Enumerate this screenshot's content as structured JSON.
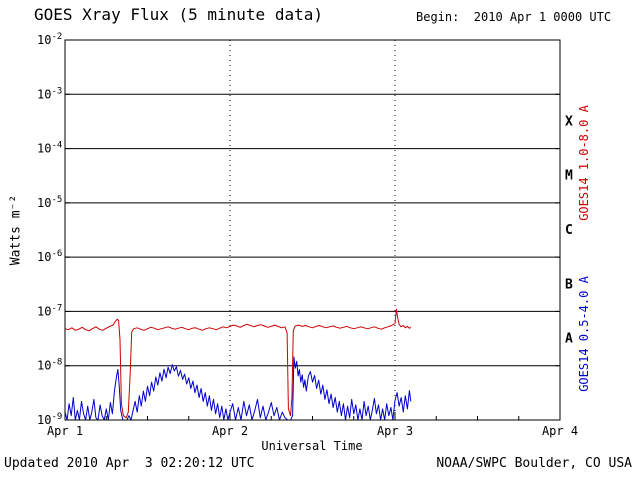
{
  "header": {
    "title": "GOES Xray Flux (5 minute data)",
    "begin": "Begin:  2010 Apr 1 0000 UTC"
  },
  "footer": {
    "updated": "Updated 2010 Apr  3 02:20:12 UTC",
    "source": "NOAA/SWPC Boulder, CO USA"
  },
  "axes": {
    "x_title": "Universal Time",
    "y_title": "Watts m⁻²",
    "x_range_hours": [
      0,
      72
    ],
    "x_minor_step_hours": 6,
    "x_ticks": [
      {
        "label": "Apr 1",
        "hour": 0,
        "dotted": false
      },
      {
        "label": "Apr 2",
        "hour": 24,
        "dotted": true
      },
      {
        "label": "Apr 3",
        "hour": 48,
        "dotted": true
      },
      {
        "label": "Apr 4",
        "hour": 72,
        "dotted": false
      }
    ],
    "y_range_exp": [
      -9,
      -2
    ],
    "y_ticks": [
      {
        "label": "10^-2",
        "exp": -2
      },
      {
        "label": "10^-3",
        "exp": -3
      },
      {
        "label": "10^-4",
        "exp": -4
      },
      {
        "label": "10^-5",
        "exp": -5
      },
      {
        "label": "10^-6",
        "exp": -6
      },
      {
        "label": "10^-7",
        "exp": -7
      },
      {
        "label": "10^-8",
        "exp": -8
      },
      {
        "label": "10^-9",
        "exp": -9
      }
    ]
  },
  "right_panel": {
    "flare_classes": [
      {
        "label": "X",
        "exp_mid": -3.5
      },
      {
        "label": "M",
        "exp_mid": -4.5
      },
      {
        "label": "C",
        "exp_mid": -5.5
      },
      {
        "label": "B",
        "exp_mid": -6.5
      },
      {
        "label": "A",
        "exp_mid": -7.5
      }
    ],
    "series_labels": [
      {
        "text": "GOES14 1.0-8.0 A",
        "color": "#cc0000"
      },
      {
        "text": "GOES14 0.5-4.0 A",
        "color": "#0000cc"
      }
    ]
  },
  "colors": {
    "long_wave": "#cc0000",
    "short_wave": "#0000cc",
    "grid": "#000000",
    "text": "#000000",
    "background": "#ffffff"
  },
  "chart_data": {
    "type": "line",
    "title": "GOES Xray Flux (5 minute data)",
    "xlabel": "Universal Time",
    "ylabel": "Watts m⁻²",
    "x_unit": "hours since 2010 Apr 1 0000 UTC",
    "xlim_hours": [
      0,
      72
    ],
    "ylim": [
      1e-09,
      0.01
    ],
    "y_scale": "log",
    "grid": true,
    "legend_position": "right",
    "series": [
      {
        "name": "GOES14 1.0-8.0 A",
        "color": "#cc0000",
        "points": [
          [
            0,
            4.8e-08
          ],
          [
            0.5,
            4.6e-08
          ],
          [
            1,
            5e-08
          ],
          [
            1.5,
            4.5e-08
          ],
          [
            2,
            4.7e-08
          ],
          [
            2.5,
            5.1e-08
          ],
          [
            3,
            4.6e-08
          ],
          [
            3.5,
            4.4e-08
          ],
          [
            4,
            4.8e-08
          ],
          [
            4.5,
            5.2e-08
          ],
          [
            5,
            4.7e-08
          ],
          [
            5.5,
            4.5e-08
          ],
          [
            6,
            4.9e-08
          ],
          [
            6.5,
            5.3e-08
          ],
          [
            7,
            5.6e-08
          ],
          [
            7.3,
            6.5e-08
          ],
          [
            7.6,
            7.2e-08
          ],
          [
            7.8,
            6.8e-08
          ],
          [
            8.0,
            3e-08
          ],
          [
            8.2,
            2e-09
          ],
          [
            8.5,
            1.2e-09
          ],
          [
            8.9,
            1.1e-09
          ],
          [
            9.2,
            1.4e-09
          ],
          [
            9.5,
            8e-09
          ],
          [
            9.7,
            4.2e-08
          ],
          [
            10,
            4.8e-08
          ],
          [
            10.5,
            5e-08
          ],
          [
            11,
            4.7e-08
          ],
          [
            11.5,
            4.5e-08
          ],
          [
            12,
            4.8e-08
          ],
          [
            12.5,
            5.1e-08
          ],
          [
            13,
            4.9e-08
          ],
          [
            13.5,
            4.6e-08
          ],
          [
            14,
            4.8e-08
          ],
          [
            14.5,
            5e-08
          ],
          [
            15,
            5.2e-08
          ],
          [
            15.5,
            4.9e-08
          ],
          [
            16,
            4.7e-08
          ],
          [
            16.5,
            4.9e-08
          ],
          [
            17,
            5.1e-08
          ],
          [
            17.5,
            4.8e-08
          ],
          [
            18,
            4.6e-08
          ],
          [
            18.5,
            4.9e-08
          ],
          [
            19,
            5e-08
          ],
          [
            19.5,
            4.7e-08
          ],
          [
            20,
            4.5e-08
          ],
          [
            20.5,
            4.8e-08
          ],
          [
            21,
            5e-08
          ],
          [
            21.5,
            4.8e-08
          ],
          [
            22,
            4.6e-08
          ],
          [
            22.5,
            4.9e-08
          ],
          [
            23,
            5.2e-08
          ],
          [
            23.5,
            5e-08
          ],
          [
            24,
            5.3e-08
          ],
          [
            24.5,
            5.6e-08
          ],
          [
            25,
            5.4e-08
          ],
          [
            25.5,
            5.1e-08
          ],
          [
            26,
            5.5e-08
          ],
          [
            26.5,
            5.8e-08
          ],
          [
            27,
            5.5e-08
          ],
          [
            27.5,
            5.2e-08
          ],
          [
            28,
            5.5e-08
          ],
          [
            28.5,
            5.7e-08
          ],
          [
            29,
            5.4e-08
          ],
          [
            29.5,
            5.1e-08
          ],
          [
            30,
            5.3e-08
          ],
          [
            30.5,
            5.6e-08
          ],
          [
            31,
            5.3e-08
          ],
          [
            31.5,
            5e-08
          ],
          [
            32,
            5.2e-08
          ],
          [
            32.3,
            4e-08
          ],
          [
            32.5,
            1.6e-09
          ],
          [
            32.8,
            1.2e-09
          ],
          [
            33.0,
            2.5e-09
          ],
          [
            33.2,
            4.5e-08
          ],
          [
            33.5,
            5.4e-08
          ],
          [
            34,
            5.6e-08
          ],
          [
            34.5,
            5.3e-08
          ],
          [
            35,
            5.5e-08
          ],
          [
            35.5,
            5.2e-08
          ],
          [
            36,
            5e-08
          ],
          [
            36.5,
            5.3e-08
          ],
          [
            37,
            5.5e-08
          ],
          [
            37.5,
            5.2e-08
          ],
          [
            38,
            5e-08
          ],
          [
            38.5,
            5.2e-08
          ],
          [
            39,
            5.4e-08
          ],
          [
            39.5,
            5.1e-08
          ],
          [
            40,
            4.9e-08
          ],
          [
            40.5,
            5.1e-08
          ],
          [
            41,
            5.3e-08
          ],
          [
            41.5,
            5e-08
          ],
          [
            42,
            4.8e-08
          ],
          [
            42.5,
            5e-08
          ],
          [
            43,
            5.2e-08
          ],
          [
            43.5,
            5e-08
          ],
          [
            44,
            4.8e-08
          ],
          [
            44.5,
            5e-08
          ],
          [
            45,
            5.2e-08
          ],
          [
            45.5,
            4.9e-08
          ],
          [
            46,
            4.7e-08
          ],
          [
            46.5,
            5e-08
          ],
          [
            47,
            5.2e-08
          ],
          [
            47.5,
            5.5e-08
          ],
          [
            48,
            6e-08
          ],
          [
            48.2,
            1.1e-07
          ],
          [
            48.4,
            7.5e-08
          ],
          [
            48.6,
            5.8e-08
          ],
          [
            48.9,
            5.2e-08
          ],
          [
            49.2,
            5.5e-08
          ],
          [
            49.5,
            5e-08
          ],
          [
            49.8,
            5.3e-08
          ],
          [
            50.1,
            4.9e-08
          ],
          [
            50.3,
            5.1e-08
          ]
        ]
      },
      {
        "name": "GOES14 0.5-4.0 A",
        "color": "#0000cc",
        "points": [
          [
            0,
            1.4e-09
          ],
          [
            0.3,
            1e-09
          ],
          [
            0.6,
            2e-09
          ],
          [
            0.9,
            1.2e-09
          ],
          [
            1.2,
            2.6e-09
          ],
          [
            1.5,
            1e-09
          ],
          [
            1.8,
            1.5e-09
          ],
          [
            2.1,
            1e-09
          ],
          [
            2.4,
            2.2e-09
          ],
          [
            2.7,
            1.3e-09
          ],
          [
            3.0,
            1e-09
          ],
          [
            3.3,
            1.8e-09
          ],
          [
            3.6,
            1e-09
          ],
          [
            3.9,
            1.4e-09
          ],
          [
            4.2,
            2.4e-09
          ],
          [
            4.5,
            1.1e-09
          ],
          [
            4.8,
            1e-09
          ],
          [
            5.1,
            1.9e-09
          ],
          [
            5.4,
            1.2e-09
          ],
          [
            5.7,
            1e-09
          ],
          [
            6.0,
            1.6e-09
          ],
          [
            6.3,
            1e-09
          ],
          [
            6.6,
            2.1e-09
          ],
          [
            6.9,
            1.3e-09
          ],
          [
            7.2,
            3.5e-09
          ],
          [
            7.5,
            6.5e-09
          ],
          [
            7.7,
            8.5e-09
          ],
          [
            7.9,
            4e-09
          ],
          [
            8.1,
            1.5e-09
          ],
          [
            8.4,
            1e-09
          ],
          [
            8.7,
            1e-09
          ],
          [
            9.0,
            1e-09
          ],
          [
            9.3,
            1.2e-09
          ],
          [
            9.6,
            1e-09
          ],
          [
            9.9,
            1.5e-09
          ],
          [
            10.2,
            2.2e-09
          ],
          [
            10.5,
            1.4e-09
          ],
          [
            10.8,
            2.8e-09
          ],
          [
            11.1,
            1.8e-09
          ],
          [
            11.4,
            3.4e-09
          ],
          [
            11.7,
            2.2e-09
          ],
          [
            12.0,
            4.2e-09
          ],
          [
            12.3,
            2.8e-09
          ],
          [
            12.6,
            5e-09
          ],
          [
            12.9,
            3.4e-09
          ],
          [
            13.2,
            6.2e-09
          ],
          [
            13.5,
            4.4e-09
          ],
          [
            13.8,
            7.4e-09
          ],
          [
            14.1,
            5.2e-09
          ],
          [
            14.4,
            8.6e-09
          ],
          [
            14.7,
            6e-09
          ],
          [
            15.0,
            9.4e-09
          ],
          [
            15.3,
            7.2e-09
          ],
          [
            15.6,
            1.05e-08
          ],
          [
            15.9,
            8e-09
          ],
          [
            16.2,
            9.6e-09
          ],
          [
            16.5,
            6.4e-09
          ],
          [
            16.8,
            8.2e-09
          ],
          [
            17.1,
            5.6e-09
          ],
          [
            17.4,
            7e-09
          ],
          [
            17.7,
            4.6e-09
          ],
          [
            18.0,
            6e-09
          ],
          [
            18.3,
            3.8e-09
          ],
          [
            18.6,
            5.2e-09
          ],
          [
            18.9,
            3.2e-09
          ],
          [
            19.2,
            4.4e-09
          ],
          [
            19.5,
            2.6e-09
          ],
          [
            19.8,
            3.8e-09
          ],
          [
            20.1,
            2.2e-09
          ],
          [
            20.4,
            3.2e-09
          ],
          [
            20.7,
            1.8e-09
          ],
          [
            21.0,
            2.8e-09
          ],
          [
            21.3,
            1.5e-09
          ],
          [
            21.6,
            2.4e-09
          ],
          [
            21.9,
            1.3e-09
          ],
          [
            22.2,
            2e-09
          ],
          [
            22.5,
            1.1e-09
          ],
          [
            22.8,
            1.8e-09
          ],
          [
            23.1,
            1e-09
          ],
          [
            23.4,
            1.6e-09
          ],
          [
            23.7,
            1e-09
          ],
          [
            24.0,
            1.4e-09
          ],
          [
            24.4,
            2e-09
          ],
          [
            24.8,
            1e-09
          ],
          [
            25.2,
            1.7e-09
          ],
          [
            25.6,
            1e-09
          ],
          [
            26.0,
            2.2e-09
          ],
          [
            26.4,
            1.2e-09
          ],
          [
            26.8,
            1.9e-09
          ],
          [
            27.2,
            1e-09
          ],
          [
            27.6,
            1.5e-09
          ],
          [
            28.0,
            2.4e-09
          ],
          [
            28.4,
            1.1e-09
          ],
          [
            28.8,
            1.8e-09
          ],
          [
            29.2,
            1e-09
          ],
          [
            29.6,
            1.4e-09
          ],
          [
            30.0,
            2.1e-09
          ],
          [
            30.4,
            1.2e-09
          ],
          [
            30.8,
            1.7e-09
          ],
          [
            31.2,
            1e-09
          ],
          [
            31.6,
            1.4e-09
          ],
          [
            32.0,
            1.1e-09
          ],
          [
            32.4,
            1e-09
          ],
          [
            32.8,
            1e-09
          ],
          [
            33.1,
            1.2e-09
          ],
          [
            33.3,
            1.45e-08
          ],
          [
            33.5,
            9e-09
          ],
          [
            33.7,
            1.2e-08
          ],
          [
            33.9,
            6.5e-09
          ],
          [
            34.1,
            8.5e-09
          ],
          [
            34.3,
            5e-09
          ],
          [
            34.5,
            6.8e-09
          ],
          [
            34.7,
            4e-09
          ],
          [
            34.9,
            5.5e-09
          ],
          [
            35.1,
            3.4e-09
          ],
          [
            35.4,
            6.5e-09
          ],
          [
            35.7,
            7.8e-09
          ],
          [
            36.0,
            5e-09
          ],
          [
            36.3,
            6.6e-09
          ],
          [
            36.6,
            3.8e-09
          ],
          [
            36.9,
            5.4e-09
          ],
          [
            37.2,
            3e-09
          ],
          [
            37.5,
            4.4e-09
          ],
          [
            37.8,
            2.4e-09
          ],
          [
            38.1,
            3.6e-09
          ],
          [
            38.4,
            2e-09
          ],
          [
            38.7,
            3e-09
          ],
          [
            39.0,
            1.7e-09
          ],
          [
            39.3,
            2.6e-09
          ],
          [
            39.6,
            1.4e-09
          ],
          [
            39.9,
            2.2e-09
          ],
          [
            40.2,
            1.2e-09
          ],
          [
            40.5,
            2e-09
          ],
          [
            40.8,
            1e-09
          ],
          [
            41.1,
            1.8e-09
          ],
          [
            41.4,
            1.1e-09
          ],
          [
            41.7,
            2.4e-09
          ],
          [
            42.0,
            1.3e-09
          ],
          [
            42.3,
            1.9e-09
          ],
          [
            42.6,
            1e-09
          ],
          [
            42.9,
            1.6e-09
          ],
          [
            43.2,
            1e-09
          ],
          [
            43.5,
            2.2e-09
          ],
          [
            43.8,
            1.2e-09
          ],
          [
            44.1,
            1.8e-09
          ],
          [
            44.4,
            1e-09
          ],
          [
            44.7,
            1.5e-09
          ],
          [
            45.0,
            2.5e-09
          ],
          [
            45.3,
            1.3e-09
          ],
          [
            45.6,
            1.9e-09
          ],
          [
            45.9,
            1e-09
          ],
          [
            46.2,
            1.6e-09
          ],
          [
            46.5,
            1e-09
          ],
          [
            46.8,
            2e-09
          ],
          [
            47.1,
            1.2e-09
          ],
          [
            47.4,
            1.7e-09
          ],
          [
            47.7,
            1e-09
          ],
          [
            48.0,
            2.3e-09
          ],
          [
            48.3,
            3.2e-09
          ],
          [
            48.6,
            1.8e-09
          ],
          [
            48.9,
            2.6e-09
          ],
          [
            49.2,
            1.4e-09
          ],
          [
            49.5,
            2.8e-09
          ],
          [
            49.8,
            1.6e-09
          ],
          [
            50.1,
            3.5e-09
          ],
          [
            50.3,
            2.2e-09
          ]
        ]
      }
    ]
  }
}
